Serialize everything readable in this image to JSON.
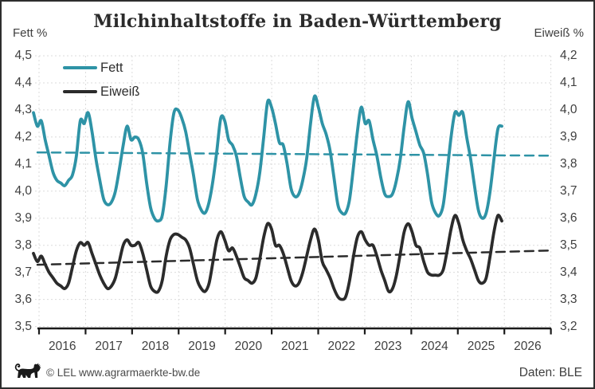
{
  "title": "Milchinhaltstoffe in Baden-Württemberg",
  "left_axis_label": "Fett %",
  "right_axis_label": "Eiweiß %",
  "legend": {
    "fett": "Fett",
    "eiweiss": "Eiweiß"
  },
  "footer": {
    "copyright": "© LEL www.agrarmaerkte-bw.de",
    "source": "Daten: BLE",
    "logo": "baden-wuerttemberg-lion"
  },
  "colors": {
    "fett": "#2e93a6",
    "eiweiss": "#2b2b2b",
    "grid": "#dbdbdb",
    "axis": "#1a1a1a",
    "tick_text": "#3f3f3f",
    "title_text": "#2b2b2b",
    "footer_text": "#4a4a4a"
  },
  "chart_data": {
    "type": "line",
    "title": "Milchinhaltstoffe in Baden-Württemberg",
    "frequency": "monthly",
    "start": "2015-11",
    "end": "2025-11",
    "left_axis": {
      "label": "Fett %",
      "ylim": [
        3.5,
        4.5
      ],
      "tick_values": [
        4.5,
        4.4,
        4.3,
        4.2,
        4.1,
        4.0,
        3.9,
        3.8,
        3.7,
        3.6,
        3.5
      ],
      "tick_labels": [
        "4,5",
        "4,4",
        "4,3",
        "4,2",
        "4,1",
        "4,0",
        "3,9",
        "3,8",
        "3,7",
        "3,6",
        "3,5"
      ]
    },
    "right_axis": {
      "label": "Eiweiß %",
      "ylim": [
        3.2,
        4.2
      ],
      "tick_values": [
        4.2,
        4.1,
        4.0,
        3.9,
        3.8,
        3.7,
        3.6,
        3.5,
        3.4,
        3.3,
        3.2
      ],
      "tick_labels": [
        "4,2",
        "4,1",
        "4,0",
        "3,9",
        "3,8",
        "3,7",
        "3,6",
        "3,5",
        "3,4",
        "3,3",
        "3,2"
      ]
    },
    "x_axis": {
      "range": [
        2015.83,
        2027.0
      ],
      "tick_years": [
        2016,
        2017,
        2018,
        2019,
        2020,
        2021,
        2022,
        2023,
        2024,
        2025,
        2026,
        2027
      ],
      "labels": [
        "2016",
        "2017",
        "2018",
        "2019",
        "2020",
        "2021",
        "2022",
        "2023",
        "2024",
        "2025",
        "2026"
      ],
      "labels_centered_between_ticks": true
    },
    "grid": true,
    "legend_position": "top-left",
    "series": [
      {
        "name": "Fett",
        "axis": "left",
        "color": "#2e93a6",
        "values": [
          4.29,
          4.24,
          4.26,
          4.19,
          4.13,
          4.07,
          4.04,
          4.03,
          4.02,
          4.04,
          4.06,
          4.13,
          4.26,
          4.25,
          4.29,
          4.22,
          4.12,
          4.04,
          3.97,
          3.95,
          3.96,
          4.0,
          4.08,
          4.17,
          4.24,
          4.19,
          4.2,
          4.19,
          4.14,
          4.03,
          3.94,
          3.9,
          3.89,
          3.91,
          4.02,
          4.18,
          4.29,
          4.3,
          4.27,
          4.22,
          4.14,
          4.06,
          3.97,
          3.93,
          3.92,
          3.96,
          4.04,
          4.15,
          4.27,
          4.26,
          4.19,
          4.17,
          4.13,
          4.05,
          3.98,
          3.96,
          3.95,
          3.99,
          4.07,
          4.2,
          4.33,
          4.31,
          4.25,
          4.18,
          4.17,
          4.1,
          4.01,
          3.98,
          3.99,
          4.04,
          4.12,
          4.25,
          4.35,
          4.31,
          4.25,
          4.21,
          4.15,
          4.05,
          3.95,
          3.92,
          3.92,
          3.97,
          4.09,
          4.22,
          4.31,
          4.25,
          4.26,
          4.19,
          4.13,
          4.05,
          3.99,
          3.98,
          3.99,
          4.04,
          4.12,
          4.24,
          4.33,
          4.27,
          4.22,
          4.17,
          4.14,
          4.06,
          3.96,
          3.92,
          3.91,
          3.95,
          4.07,
          4.2,
          4.29,
          4.28,
          4.29,
          4.2,
          4.12,
          4.02,
          3.93,
          3.9,
          3.92,
          4.0,
          4.12,
          4.23,
          4.24
        ]
      },
      {
        "name": "Eiweiß",
        "axis": "right",
        "color": "#2b2b2b",
        "values": [
          3.47,
          3.44,
          3.46,
          3.43,
          3.4,
          3.38,
          3.36,
          3.35,
          3.34,
          3.36,
          3.42,
          3.48,
          3.51,
          3.5,
          3.51,
          3.47,
          3.43,
          3.39,
          3.36,
          3.34,
          3.35,
          3.38,
          3.44,
          3.5,
          3.52,
          3.5,
          3.5,
          3.51,
          3.47,
          3.41,
          3.35,
          3.33,
          3.33,
          3.37,
          3.46,
          3.52,
          3.54,
          3.54,
          3.53,
          3.52,
          3.49,
          3.43,
          3.37,
          3.34,
          3.33,
          3.36,
          3.44,
          3.52,
          3.55,
          3.52,
          3.48,
          3.49,
          3.46,
          3.42,
          3.38,
          3.37,
          3.36,
          3.38,
          3.45,
          3.53,
          3.58,
          3.56,
          3.5,
          3.5,
          3.47,
          3.42,
          3.37,
          3.35,
          3.36,
          3.4,
          3.46,
          3.52,
          3.56,
          3.52,
          3.44,
          3.41,
          3.38,
          3.34,
          3.31,
          3.3,
          3.31,
          3.37,
          3.46,
          3.53,
          3.55,
          3.52,
          3.5,
          3.5,
          3.46,
          3.41,
          3.37,
          3.33,
          3.34,
          3.39,
          3.47,
          3.55,
          3.58,
          3.55,
          3.5,
          3.49,
          3.44,
          3.4,
          3.39,
          3.39,
          3.39,
          3.41,
          3.48,
          3.56,
          3.61,
          3.58,
          3.52,
          3.48,
          3.45,
          3.41,
          3.37,
          3.36,
          3.38,
          3.46,
          3.55,
          3.61,
          3.59
        ]
      }
    ],
    "trend_lines": [
      {
        "name": "Fett Trend",
        "axis": "left",
        "style": "dashed",
        "color": "#2e93a6",
        "from_value": 4.143,
        "to_value": 4.131
      },
      {
        "name": "Eiweiß Trend",
        "axis": "right",
        "style": "dashed",
        "color": "#2b2b2b",
        "from_value": 3.428,
        "to_value": 3.481
      }
    ]
  }
}
